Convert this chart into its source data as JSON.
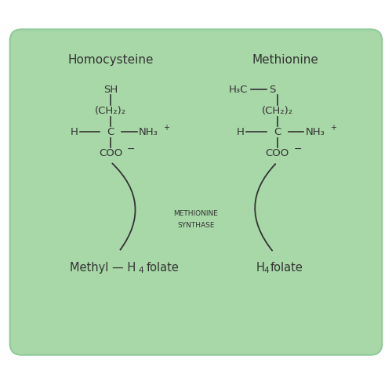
{
  "bg_color": "#ffffff",
  "box_facecolor": "#a8d8a8",
  "box_edgecolor": "#8fca9a",
  "text_color": "#333333",
  "title_left": "Homocysteine",
  "title_right": "Methionine",
  "enzyme_line1": "METHIONINE",
  "enzyme_line2": "SYNTHASE",
  "figsize": [
    5.0,
    5.0
  ],
  "dpi": 100
}
